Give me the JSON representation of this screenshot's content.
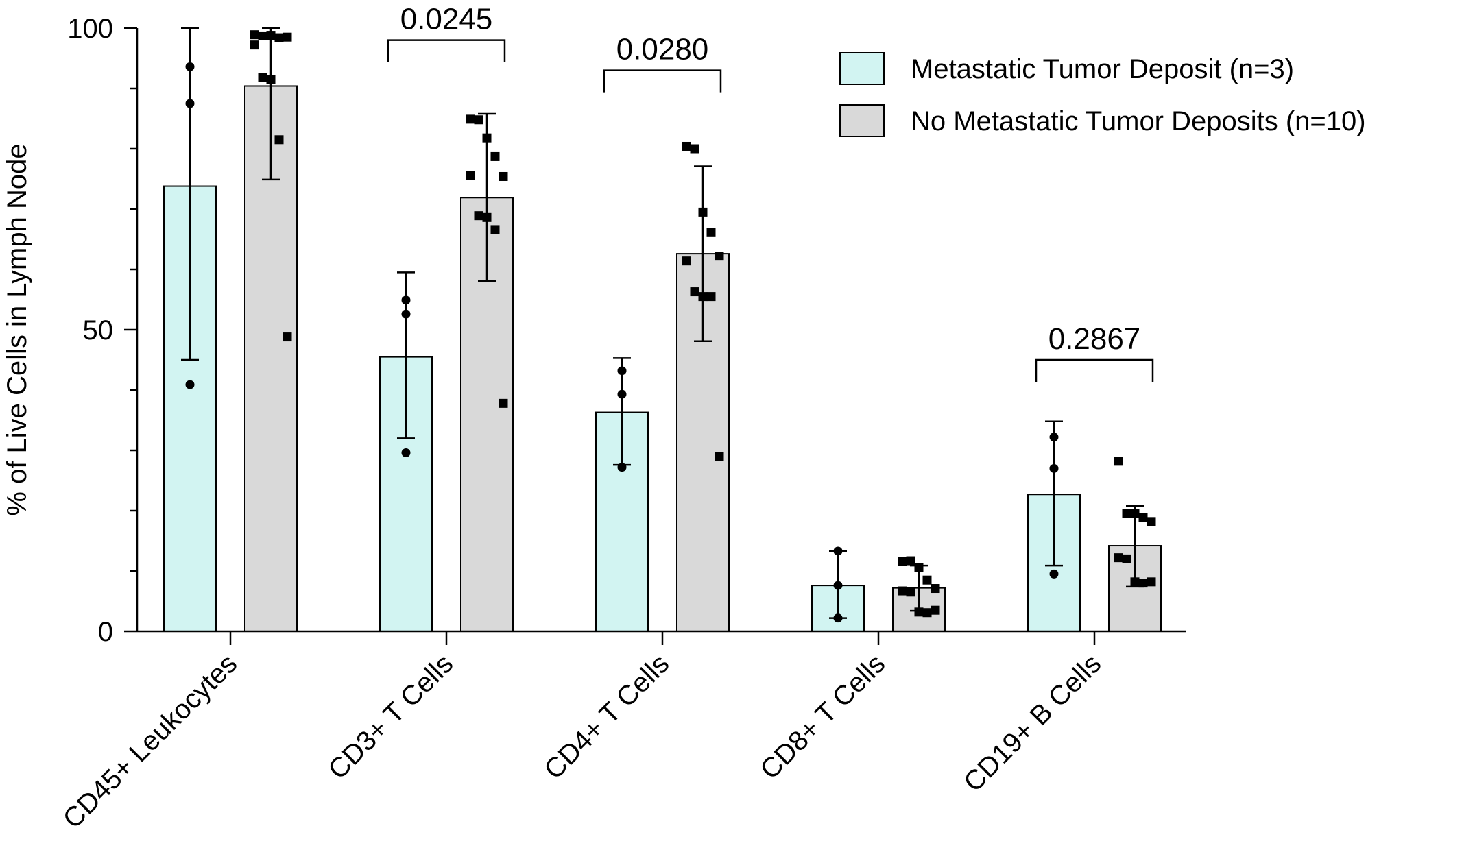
{
  "chart_data": {
    "type": "bar",
    "title": "",
    "xlabel": "",
    "ylabel": "% of Live Cells in Lymph Node",
    "ylim": [
      0,
      100
    ],
    "yticks": [
      0,
      50,
      100
    ],
    "yticks_minor": [
      10,
      20,
      30,
      40,
      60,
      70,
      80,
      90
    ],
    "categories": [
      "CD45+ Leukocytes",
      "CD3+ T Cells",
      "CD4+ T Cells",
      "CD8+ T Cells",
      "CD19+ B Cells"
    ],
    "legend_position": "top-right",
    "series": [
      {
        "name": "Metastatic Tumor Deposit (n=3)",
        "color": "#d2f4f2",
        "marker": "circle",
        "values": [
          73.8,
          45.5,
          36.3,
          7.6,
          22.7
        ],
        "error_low": [
          45.0,
          32.0,
          27.6,
          2.2,
          10.9
        ],
        "error_high": [
          100,
          59.5,
          45.3,
          13.3,
          34.8
        ],
        "points": [
          [
            93.6,
            87.5,
            40.9
          ],
          [
            54.9,
            52.6,
            29.6
          ],
          [
            43.2,
            39.3,
            27.2
          ],
          [
            13.3,
            7.6,
            2.2
          ],
          [
            32.2,
            27.0,
            9.5
          ]
        ]
      },
      {
        "name": "No Metastatic Tumor Deposits (n=10)",
        "color": "#d9d9d9",
        "marker": "square",
        "values": [
          90.4,
          71.9,
          62.6,
          7.2,
          14.2
        ],
        "error_low": [
          74.9,
          58.1,
          48.1,
          3.4,
          7.4
        ],
        "error_high": [
          100,
          85.8,
          77.1,
          10.9,
          20.8
        ],
        "points": [
          [
            98.9,
            98.7,
            98.8,
            98.4,
            98.5,
            97.2,
            91.8,
            91.5,
            81.5,
            48.8
          ],
          [
            84.9,
            84.8,
            81.8,
            78.7,
            75.4,
            75.6,
            68.9,
            68.6,
            66.6,
            37.8
          ],
          [
            80.4,
            80.0,
            69.5,
            66.1,
            62.2,
            61.4,
            56.3,
            55.5,
            55.5,
            29.0
          ],
          [
            11.6,
            11.7,
            10.6,
            8.5,
            7.1,
            6.7,
            6.5,
            3.2,
            3.1,
            3.5
          ],
          [
            28.2,
            19.6,
            19.6,
            18.9,
            18.2,
            12.2,
            12.0,
            8.2,
            8.0,
            8.2
          ]
        ]
      }
    ],
    "annotations": [
      {
        "category_index": 1,
        "text": "0.0245",
        "bracket_y": 98.0
      },
      {
        "category_index": 2,
        "text": "0.0280",
        "bracket_y": 93.0
      },
      {
        "category_index": 4,
        "text": "0.2867",
        "bracket_y": 45.0
      }
    ]
  }
}
